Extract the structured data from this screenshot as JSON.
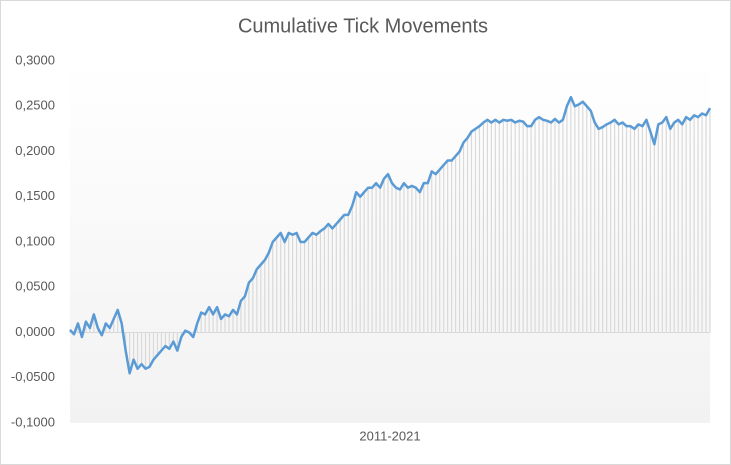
{
  "chart_data": {
    "type": "line",
    "title": "Cumulative Tick Movements",
    "x_label": "2011-2021",
    "color": "#5b9bd5",
    "drop_lines": true,
    "drop_line_color": "#d9d9d9",
    "ylim": [
      -0.1,
      0.3
    ],
    "yticks": [
      {
        "value": -0.1,
        "label": "-0,1000"
      },
      {
        "value": -0.05,
        "label": "-0,0500"
      },
      {
        "value": 0,
        "label": "0,0000"
      },
      {
        "value": 0.05,
        "label": "0,0500"
      },
      {
        "value": 0.1,
        "label": "0,1000"
      },
      {
        "value": 0.15,
        "label": "0,1500"
      },
      {
        "value": 0.2,
        "label": "0,2000"
      },
      {
        "value": 0.25,
        "label": "0,2500"
      },
      {
        "value": 0.3,
        "label": "0,3000"
      }
    ],
    "values": [
      0.003,
      -0.002,
      0.01,
      -0.005,
      0.012,
      0.005,
      0.02,
      0.005,
      -0.003,
      0.01,
      0.005,
      0.015,
      0.025,
      0.01,
      -0.02,
      -0.045,
      -0.03,
      -0.04,
      -0.035,
      -0.04,
      -0.038,
      -0.03,
      -0.025,
      -0.02,
      -0.015,
      -0.018,
      -0.01,
      -0.02,
      -0.005,
      0.002,
      0.0,
      -0.005,
      0.01,
      0.022,
      0.02,
      0.028,
      0.02,
      0.028,
      0.015,
      0.02,
      0.018,
      0.025,
      0.02,
      0.035,
      0.04,
      0.055,
      0.06,
      0.07,
      0.075,
      0.08,
      0.088,
      0.1,
      0.105,
      0.11,
      0.1,
      0.11,
      0.108,
      0.11,
      0.1,
      0.1,
      0.105,
      0.11,
      0.108,
      0.112,
      0.115,
      0.12,
      0.115,
      0.12,
      0.125,
      0.13,
      0.13,
      0.14,
      0.155,
      0.15,
      0.155,
      0.16,
      0.16,
      0.165,
      0.16,
      0.17,
      0.175,
      0.165,
      0.16,
      0.158,
      0.165,
      0.16,
      0.162,
      0.16,
      0.155,
      0.165,
      0.165,
      0.178,
      0.175,
      0.18,
      0.185,
      0.19,
      0.19,
      0.195,
      0.2,
      0.21,
      0.215,
      0.222,
      0.225,
      0.228,
      0.232,
      0.235,
      0.232,
      0.235,
      0.232,
      0.235,
      0.234,
      0.235,
      0.232,
      0.234,
      0.233,
      0.228,
      0.228,
      0.235,
      0.238,
      0.235,
      0.234,
      0.232,
      0.236,
      0.232,
      0.235,
      0.25,
      0.26,
      0.25,
      0.252,
      0.255,
      0.25,
      0.245,
      0.232,
      0.225,
      0.227,
      0.23,
      0.232,
      0.235,
      0.23,
      0.232,
      0.228,
      0.228,
      0.225,
      0.23,
      0.228,
      0.235,
      0.222,
      0.208,
      0.23,
      0.232,
      0.238,
      0.225,
      0.232,
      0.235,
      0.23,
      0.238,
      0.235,
      0.24,
      0.238,
      0.242,
      0.24,
      0.248
    ]
  }
}
